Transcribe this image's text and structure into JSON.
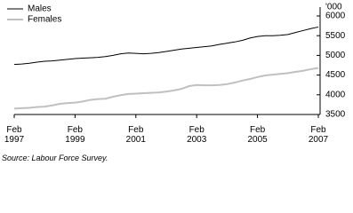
{
  "chart_data": {
    "type": "line",
    "y_unit": "'000",
    "source": "Source: Labour Force Survey.",
    "categories": [
      "Feb\n1997",
      null,
      null,
      null,
      null,
      null,
      null,
      null,
      "Feb\n1999",
      null,
      null,
      null,
      null,
      null,
      null,
      null,
      "Feb\n2001",
      null,
      null,
      null,
      null,
      null,
      null,
      null,
      "Feb\n2003",
      null,
      null,
      null,
      null,
      null,
      null,
      null,
      "Feb\n2005",
      null,
      null,
      null,
      null,
      null,
      null,
      null,
      "Feb\n2007"
    ],
    "series": [
      {
        "name": "Males",
        "color": "#000000",
        "values": [
          4770,
          4780,
          4800,
          4830,
          4850,
          4860,
          4880,
          4900,
          4920,
          4930,
          4940,
          4950,
          4970,
          5000,
          5040,
          5060,
          5050,
          5040,
          5050,
          5070,
          5100,
          5130,
          5160,
          5180,
          5200,
          5220,
          5240,
          5280,
          5310,
          5340,
          5380,
          5440,
          5480,
          5500,
          5500,
          5510,
          5530,
          5580,
          5630,
          5680,
          5720
        ]
      },
      {
        "name": "Females",
        "color": "#c0c0c0",
        "values": [
          3650,
          3660,
          3670,
          3690,
          3700,
          3730,
          3770,
          3790,
          3800,
          3830,
          3870,
          3890,
          3900,
          3950,
          3990,
          4020,
          4030,
          4040,
          4050,
          4060,
          4080,
          4110,
          4150,
          4220,
          4250,
          4240,
          4240,
          4250,
          4270,
          4310,
          4360,
          4400,
          4450,
          4490,
          4510,
          4530,
          4550,
          4580,
          4610,
          4650,
          4680
        ]
      }
    ],
    "ylim": [
      3500,
      6000
    ],
    "yticks": [
      3500,
      4000,
      4500,
      5000,
      5500,
      6000
    ],
    "y_axis_side": "right"
  }
}
